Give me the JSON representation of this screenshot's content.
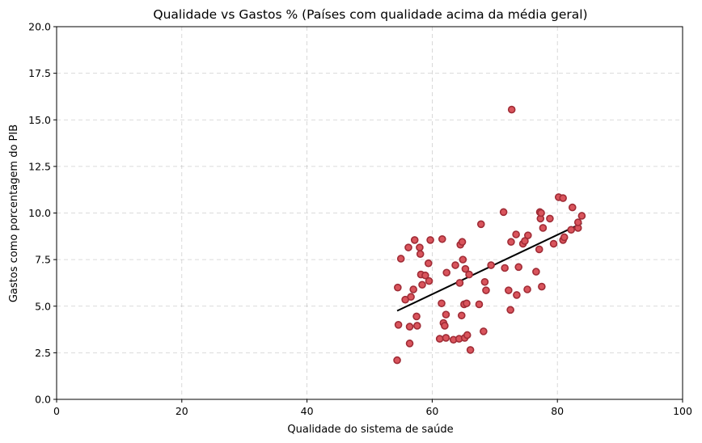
{
  "chart_data": {
    "type": "scatter",
    "title": "Qualidade vs Gastos % (Países com qualidade acima da média geral)",
    "xlabel": "Qualidade do sistema de saúde",
    "ylabel": "Gastos como porcentagem do PIB",
    "xlim": [
      0,
      100
    ],
    "ylim": [
      0,
      20
    ],
    "xticks": [
      0,
      20,
      40,
      60,
      80,
      100
    ],
    "xtick_labels": [
      "0",
      "20",
      "40",
      "60",
      "80",
      "100"
    ],
    "yticks": [
      0,
      2.5,
      5,
      7.5,
      10,
      12.5,
      15,
      17.5,
      20
    ],
    "ytick_labels": [
      "0.0",
      "2.5",
      "5.0",
      "7.5",
      "10.0",
      "12.5",
      "15.0",
      "17.5",
      "20.0"
    ],
    "grid": true,
    "colors": {
      "point_fill": "#d9545c",
      "point_edge": "#a02c36",
      "trend": "#000000"
    },
    "points": [
      [
        54.4,
        2.1
      ],
      [
        54.5,
        6.0
      ],
      [
        54.6,
        4.0
      ],
      [
        55.0,
        7.55
      ],
      [
        55.7,
        5.35
      ],
      [
        56.2,
        8.15
      ],
      [
        56.4,
        3.0
      ],
      [
        56.4,
        3.9
      ],
      [
        56.6,
        5.5
      ],
      [
        57.0,
        5.9
      ],
      [
        57.2,
        8.55
      ],
      [
        57.5,
        4.45
      ],
      [
        57.6,
        3.95
      ],
      [
        58.0,
        8.15
      ],
      [
        58.1,
        7.8
      ],
      [
        58.2,
        6.7
      ],
      [
        58.4,
        6.15
      ],
      [
        58.9,
        6.65
      ],
      [
        59.4,
        7.3
      ],
      [
        59.5,
        6.35
      ],
      [
        59.7,
        8.55
      ],
      [
        61.2,
        3.25
      ],
      [
        61.5,
        5.15
      ],
      [
        61.6,
        8.6
      ],
      [
        61.8,
        4.1
      ],
      [
        62.0,
        3.95
      ],
      [
        62.2,
        4.55
      ],
      [
        62.2,
        3.3
      ],
      [
        62.3,
        6.8
      ],
      [
        63.4,
        3.2
      ],
      [
        63.7,
        7.2
      ],
      [
        64.3,
        3.25
      ],
      [
        64.4,
        6.25
      ],
      [
        64.5,
        8.3
      ],
      [
        64.7,
        4.5
      ],
      [
        64.8,
        8.45
      ],
      [
        64.9,
        7.5
      ],
      [
        65.1,
        5.1
      ],
      [
        65.2,
        3.3
      ],
      [
        65.3,
        7.0
      ],
      [
        65.5,
        5.15
      ],
      [
        65.6,
        3.45
      ],
      [
        65.9,
        6.7
      ],
      [
        66.1,
        2.65
      ],
      [
        67.5,
        5.1
      ],
      [
        67.8,
        9.4
      ],
      [
        68.2,
        3.65
      ],
      [
        68.4,
        6.3
      ],
      [
        68.6,
        5.85
      ],
      [
        69.4,
        7.2
      ],
      [
        71.4,
        10.05
      ],
      [
        71.6,
        7.05
      ],
      [
        72.2,
        5.85
      ],
      [
        72.5,
        4.8
      ],
      [
        72.6,
        8.45
      ],
      [
        72.7,
        15.55
      ],
      [
        73.4,
        8.85
      ],
      [
        73.5,
        5.6
      ],
      [
        73.8,
        7.1
      ],
      [
        74.5,
        8.35
      ],
      [
        74.8,
        8.5
      ],
      [
        75.2,
        5.9
      ],
      [
        75.3,
        8.8
      ],
      [
        76.6,
        6.85
      ],
      [
        77.1,
        8.05
      ],
      [
        77.2,
        10.05
      ],
      [
        77.3,
        9.7
      ],
      [
        77.4,
        10.0
      ],
      [
        77.5,
        6.05
      ],
      [
        77.7,
        9.2
      ],
      [
        78.8,
        9.7
      ],
      [
        79.4,
        8.35
      ],
      [
        80.2,
        10.85
      ],
      [
        80.9,
        10.8
      ],
      [
        80.9,
        8.55
      ],
      [
        81.1,
        8.7
      ],
      [
        82.2,
        9.1
      ],
      [
        82.4,
        10.3
      ],
      [
        83.3,
        9.2
      ],
      [
        83.3,
        9.5
      ],
      [
        83.9,
        9.85
      ]
    ],
    "trendline": {
      "x": [
        54.4,
        83.9
      ],
      "y": [
        4.75,
        9.45
      ]
    }
  }
}
